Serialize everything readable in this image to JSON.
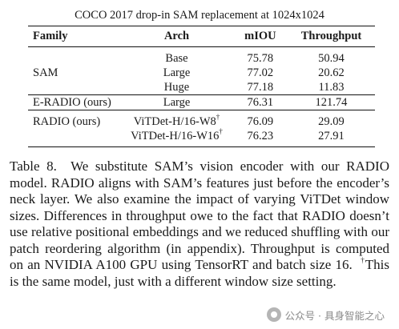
{
  "table": {
    "title": "COCO 2017 drop-in SAM replacement at 1024x1024",
    "columns": [
      "Family",
      "Arch",
      "mIOU",
      "Throughput"
    ],
    "rows": [
      {
        "family": "",
        "arch": "Base",
        "arch_sup": "",
        "miou": "75.78",
        "throughput": "50.94"
      },
      {
        "family": "SAM",
        "arch": "Large",
        "arch_sup": "",
        "miou": "77.02",
        "throughput": "20.62"
      },
      {
        "family": "",
        "arch": "Huge",
        "arch_sup": "",
        "miou": "77.18",
        "throughput": "11.83"
      },
      {
        "family": "E-RADIO (ours)",
        "arch": "Large",
        "arch_sup": "",
        "miou": "76.31",
        "throughput": "121.74"
      },
      {
        "family": "RADIO (ours)",
        "arch": "ViTDet-H/16-W8",
        "arch_sup": "†",
        "miou": "76.09",
        "throughput": "29.09"
      },
      {
        "family": "",
        "arch": "ViTDet-H/16-W16",
        "arch_sup": "†",
        "miou": "76.23",
        "throughput": "27.91"
      }
    ]
  },
  "caption": {
    "label": "Table 8.",
    "body": "We substitute SAM’s vision encoder with our RADIO model. RADIO aligns with SAM’s features just before the encoder’s neck layer. We also examine the impact of varying ViTDet window sizes. Differences in throughput owe to the fact that RADIO doesn’t use relative positional embeddings and we reduced shuffling with our patch reordering algorithm (in appendix). Throughput is computed on an NVIDIA A100 GPU using TensorRT and batch size 16.",
    "dagger": "†",
    "footnote": "This is the same model, just with a different window size setting."
  },
  "watermark": {
    "text": "公众号 · 具身智能之心",
    "icon": "wechat-icon"
  }
}
